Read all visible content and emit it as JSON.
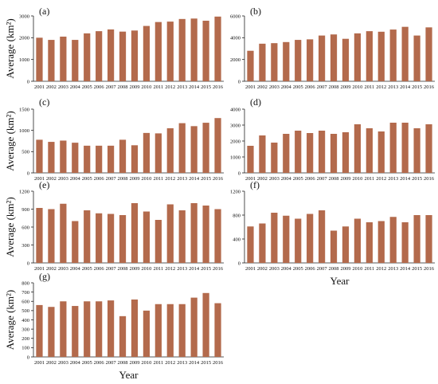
{
  "figure": {
    "ylabel": "Average (km²)",
    "xlabel": "Year",
    "colors": {
      "bar": "#b36a4c",
      "axis": "#222222",
      "text": "#111111",
      "background": "#ffffff"
    }
  },
  "chart_data": [
    {
      "id": "a",
      "label": "(a)",
      "type": "bar",
      "column": "left",
      "row": 0,
      "ylabel": "Average (km²)",
      "xlabel": "",
      "ylim": [
        0,
        3000
      ],
      "yticks": [
        0,
        1000,
        2000,
        3000
      ],
      "categories": [
        "2001",
        "2002",
        "2003",
        "2004",
        "2005",
        "2006",
        "2007",
        "2008",
        "2009",
        "2010",
        "2011",
        "2012",
        "2013",
        "2014",
        "2015",
        "2016"
      ],
      "values": [
        2000,
        1900,
        2050,
        1900,
        2200,
        2300,
        2380,
        2280,
        2330,
        2540,
        2720,
        2740,
        2860,
        2880,
        2780,
        2970
      ]
    },
    {
      "id": "b",
      "label": "(b)",
      "type": "bar",
      "column": "right",
      "row": 0,
      "ylabel": "",
      "xlabel": "",
      "ylim": [
        0,
        6000
      ],
      "yticks": [
        0,
        2000,
        4000,
        6000
      ],
      "categories": [
        "2001",
        "2002",
        "2003",
        "2004",
        "2005",
        "2006",
        "2007",
        "2008",
        "2009",
        "2010",
        "2011",
        "2012",
        "2013",
        "2014",
        "2015",
        "2016"
      ],
      "values": [
        2800,
        3450,
        3500,
        3600,
        3800,
        3850,
        4200,
        4300,
        3900,
        4400,
        4600,
        4550,
        4750,
        5000,
        4200,
        4950
      ]
    },
    {
      "id": "c",
      "label": "(c)",
      "type": "bar",
      "column": "left",
      "row": 1,
      "ylabel": "Average (km²)",
      "xlabel": "",
      "ylim": [
        0,
        1500
      ],
      "yticks": [
        0,
        500,
        1000,
        1500
      ],
      "categories": [
        "2001",
        "2002",
        "2003",
        "2004",
        "2005",
        "2006",
        "2007",
        "2008",
        "2009",
        "2010",
        "2011",
        "2012",
        "2013",
        "2014",
        "2015",
        "2016"
      ],
      "values": [
        780,
        730,
        760,
        710,
        640,
        640,
        640,
        780,
        650,
        940,
        930,
        1050,
        1170,
        1100,
        1180,
        1290
      ]
    },
    {
      "id": "d",
      "label": "(d)",
      "type": "bar",
      "column": "right",
      "row": 1,
      "ylabel": "",
      "xlabel": "",
      "ylim": [
        0,
        4000
      ],
      "yticks": [
        0,
        1000,
        2000,
        3000,
        4000
      ],
      "categories": [
        "2001",
        "2002",
        "2003",
        "2004",
        "2005",
        "2006",
        "2007",
        "2008",
        "2009",
        "2010",
        "2011",
        "2012",
        "2013",
        "2014",
        "2015",
        "2016"
      ],
      "values": [
        1700,
        2350,
        1900,
        2450,
        2650,
        2500,
        2650,
        2450,
        2550,
        3050,
        2800,
        2600,
        3150,
        3150,
        2800,
        3050
      ]
    },
    {
      "id": "e",
      "label": "(e)",
      "type": "bar",
      "column": "left",
      "row": 2,
      "ylabel": "Average (km²)",
      "xlabel": "",
      "ylim": [
        0,
        1200
      ],
      "yticks": [
        0,
        300,
        600,
        900,
        1200
      ],
      "categories": [
        "2001",
        "2002",
        "2003",
        "2004",
        "2005",
        "2006",
        "2007",
        "2008",
        "2009",
        "2010",
        "2011",
        "2012",
        "2013",
        "2014",
        "2015",
        "2016"
      ],
      "values": [
        920,
        900,
        990,
        700,
        880,
        830,
        820,
        800,
        1000,
        860,
        720,
        980,
        880,
        1000,
        960,
        900
      ]
    },
    {
      "id": "f",
      "label": "(f)",
      "type": "bar",
      "column": "right",
      "row": 2,
      "ylabel": "",
      "xlabel": "Year",
      "ylim": [
        0,
        1200
      ],
      "yticks": [
        0,
        400,
        800,
        1200
      ],
      "categories": [
        "2001",
        "2002",
        "2003",
        "2004",
        "2005",
        "2006",
        "2007",
        "2008",
        "2009",
        "2010",
        "2011",
        "2012",
        "2013",
        "2014",
        "2015",
        "2016"
      ],
      "values": [
        610,
        660,
        840,
        790,
        740,
        820,
        880,
        540,
        610,
        740,
        680,
        700,
        770,
        680,
        800,
        800
      ]
    },
    {
      "id": "g",
      "label": "(g)",
      "type": "bar",
      "column": "left",
      "row": 3,
      "ylabel": "Average (km²)",
      "xlabel": "Year",
      "ylim": [
        0,
        800
      ],
      "yticks": [
        0,
        100,
        200,
        300,
        400,
        500,
        600,
        700,
        800
      ],
      "categories": [
        "2001",
        "2002",
        "2003",
        "2004",
        "2005",
        "2006",
        "2007",
        "2008",
        "2009",
        "2010",
        "2011",
        "2012",
        "2013",
        "2014",
        "2015",
        "2016"
      ],
      "values": [
        560,
        540,
        600,
        550,
        600,
        600,
        610,
        440,
        620,
        500,
        570,
        570,
        570,
        640,
        690,
        580
      ]
    }
  ]
}
